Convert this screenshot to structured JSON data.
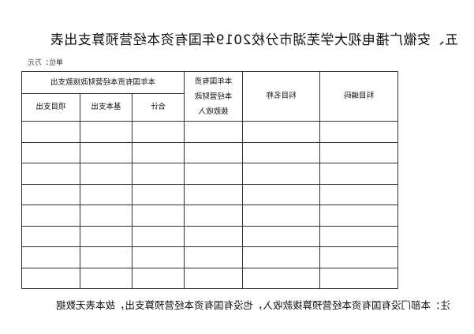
{
  "title": "五、安徽广播电视大学芜湖市分校2019年国有资本经营预算支出表",
  "unit": "单位：万元",
  "table": {
    "headers": {
      "code": "科目编码",
      "name": "科目名称",
      "income": "本年国有资本经营财政拨款收入",
      "expense_group": "本年国有资本经营财政拨款支出",
      "total": "合计",
      "basic": "基本支出",
      "project": "项目支出"
    },
    "rows": [
      [],
      [],
      [],
      [],
      [],
      [],
      [],
      []
    ]
  },
  "note": "注：本部门没有国有资本经营预算拨款收入，也没有国有资本经营预算支出，故本表无数据"
}
